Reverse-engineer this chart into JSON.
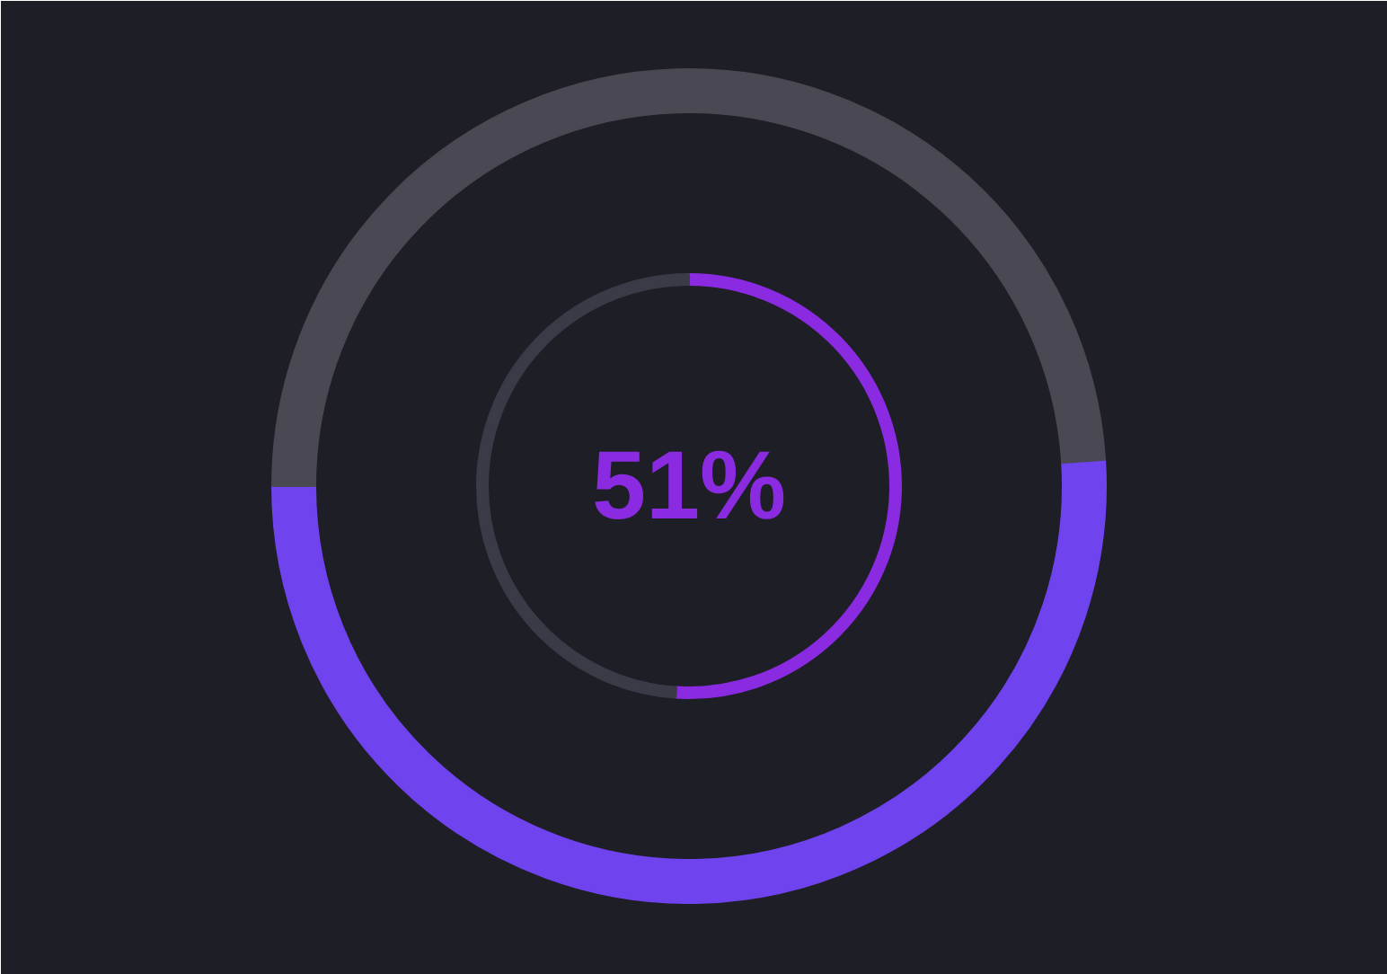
{
  "chart_data": {
    "type": "donut",
    "categories": [
      null,
      null
    ],
    "annotations": [
      "51%"
    ],
    "series": [
      {
        "values": [
          51,
          49
        ],
        "colors": [
          "#6f43ee",
          "#4a4852"
        ]
      },
      {
        "values": [
          51,
          49
        ],
        "colors": [
          "#8a2be2",
          "#3b3a47"
        ]
      }
    ]
  }
}
